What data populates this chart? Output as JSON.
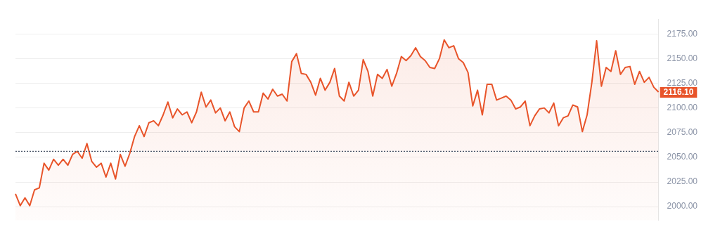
{
  "chart_data": {
    "type": "area",
    "color": "#e8542a",
    "marker": "none",
    "line_style": "solid",
    "grid": "y",
    "legend": false,
    "tick_labels": "y",
    "ylim": [
      1986,
      2190
    ],
    "yticks": [
      {
        "value": 2000,
        "label": "2000.00"
      },
      {
        "value": 2025,
        "label": "2025.00"
      },
      {
        "value": 2050,
        "label": "2050.00"
      },
      {
        "value": 2075,
        "label": "2075.00"
      },
      {
        "value": 2100,
        "label": "2100.00"
      },
      {
        "value": 2125,
        "label": "2125.00"
      },
      {
        "value": 2150,
        "label": "2150.00"
      },
      {
        "value": 2175,
        "label": "2175.00"
      }
    ],
    "ref_lines": [
      {
        "axis": "y",
        "value": 2056,
        "color": "#4a5568",
        "line_style": "dotted"
      }
    ],
    "annotations": [
      "2116.10"
    ],
    "categories": [
      null,
      null,
      null,
      null,
      null,
      null,
      null,
      null,
      null,
      null,
      null,
      null,
      null,
      null,
      null,
      null,
      null,
      null,
      null,
      null,
      null,
      null,
      null,
      null,
      null,
      null,
      null,
      null,
      null,
      null,
      null,
      null,
      null,
      null,
      null,
      null,
      null,
      null,
      null,
      null,
      null,
      null,
      null,
      null,
      null,
      null,
      null,
      null,
      null,
      null,
      null,
      null,
      null,
      null,
      null,
      null,
      null,
      null,
      null,
      null,
      null,
      null,
      null,
      null,
      null,
      null,
      null,
      null,
      null,
      null,
      null,
      null,
      null,
      null,
      null,
      null,
      null,
      null,
      null,
      null,
      null,
      null,
      null,
      null,
      null,
      null,
      null,
      null,
      null,
      null,
      null,
      null,
      null,
      null,
      null,
      null,
      null,
      null,
      null,
      null,
      null,
      null,
      null,
      null,
      null,
      null,
      null,
      null,
      null,
      null,
      null,
      null,
      null,
      null,
      null,
      null,
      null,
      null,
      null,
      null,
      null,
      null,
      null,
      null,
      null,
      null,
      null,
      null,
      null,
      null,
      null,
      null,
      null,
      null,
      null,
      null
    ],
    "values": [
      2013,
      2001,
      2009,
      2001,
      2017,
      2019,
      2044,
      2037,
      2048,
      2042,
      2048,
      2042,
      2053,
      2056,
      2049,
      2064,
      2046,
      2040,
      2044,
      2030,
      2044,
      2028,
      2053,
      2041,
      2054,
      2071,
      2082,
      2071,
      2085,
      2087,
      2082,
      2093,
      2106,
      2090,
      2099,
      2093,
      2096,
      2085,
      2096,
      2116,
      2101,
      2108,
      2095,
      2100,
      2087,
      2096,
      2081,
      2076,
      2100,
      2107,
      2096,
      2096,
      2115,
      2109,
      2119,
      2112,
      2114,
      2107,
      2147,
      2155,
      2135,
      2134,
      2126,
      2113,
      2130,
      2118,
      2126,
      2140,
      2112,
      2107,
      2126,
      2112,
      2118,
      2149,
      2137,
      2112,
      2134,
      2130,
      2139,
      2122,
      2135,
      2152,
      2148,
      2153,
      2161,
      2152,
      2148,
      2141,
      2140,
      2150,
      2169,
      2161,
      2163,
      2150,
      2146,
      2136,
      2102,
      2118,
      2093,
      2124,
      2124,
      2108,
      2110,
      2112,
      2108,
      2099,
      2101,
      2107,
      2082,
      2092,
      2099,
      2100,
      2095,
      2105,
      2082,
      2090,
      2092,
      2103,
      2101,
      2076,
      2093,
      2126,
      2168,
      2122,
      2141,
      2137,
      2158,
      2134,
      2141,
      2142,
      2124,
      2137,
      2126,
      2131,
      2121,
      2116.1
    ]
  }
}
